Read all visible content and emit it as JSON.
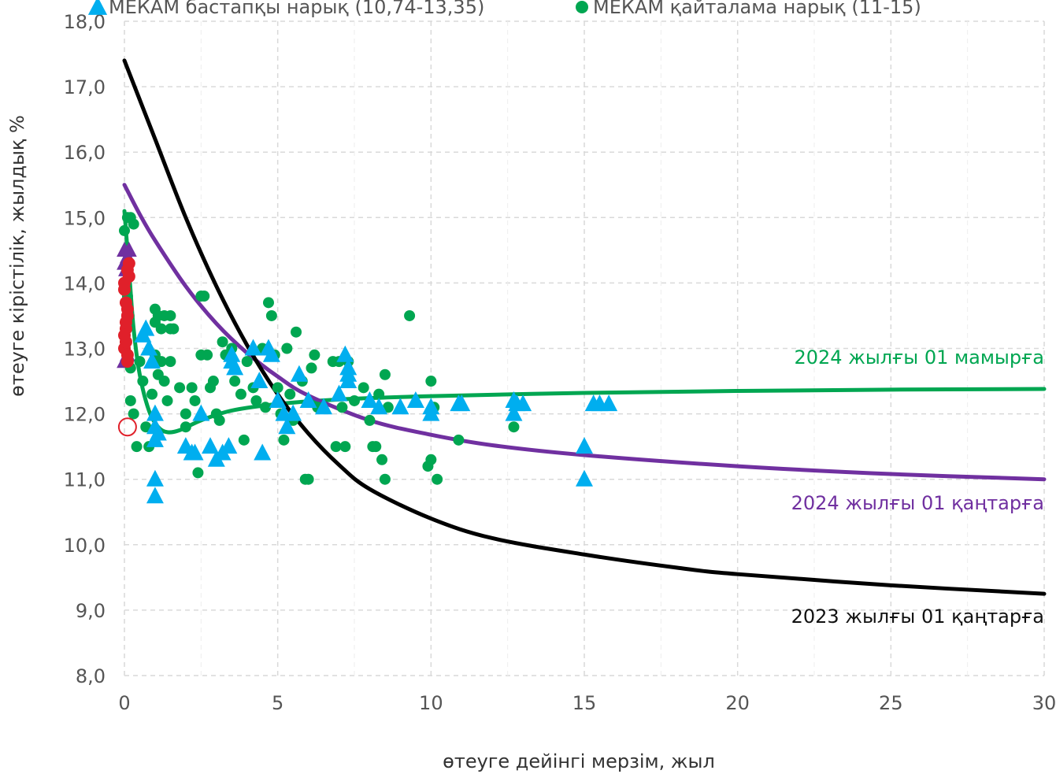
{
  "chart_data": {
    "type": "scatter",
    "xlabel": "өтеуге дейінгі мерзім, жыл",
    "ylabel": "өтеуге кірістілік, жылдық %",
    "xlim": [
      0,
      30
    ],
    "ylim": [
      8,
      18
    ],
    "x_ticks": [
      "0",
      "5",
      "10",
      "15",
      "20",
      "25",
      "30"
    ],
    "y_ticks": [
      "8,0",
      "9,0",
      "10,0",
      "11,0",
      "12,0",
      "13,0",
      "14,0",
      "15,0",
      "16,0",
      "17,0",
      "18,0"
    ],
    "grid": true,
    "legend_position": "top",
    "legend": [
      {
        "label": "МЕКАМ бастапқы нарық (10,74-13,35)",
        "marker": "triangle",
        "color": "#00AEEF"
      },
      {
        "label": "МЕКАМ қайталама нарық (11-15)",
        "marker": "circle",
        "color": "#00A651"
      }
    ],
    "curves": [
      {
        "name": "2024 жылғы 01 мамырға",
        "color": "#00A651",
        "points": [
          [
            0.0,
            15.1
          ],
          [
            0.15,
            14.2
          ],
          [
            0.3,
            13.3
          ],
          [
            0.5,
            12.6
          ],
          [
            0.8,
            12.05
          ],
          [
            1.1,
            11.8
          ],
          [
            1.4,
            11.72
          ],
          [
            1.8,
            11.75
          ],
          [
            2.5,
            11.9
          ],
          [
            3.5,
            12.05
          ],
          [
            5,
            12.15
          ],
          [
            7,
            12.22
          ],
          [
            10,
            12.27
          ],
          [
            15,
            12.32
          ],
          [
            20,
            12.35
          ],
          [
            25,
            12.37
          ],
          [
            30,
            12.38
          ]
        ]
      },
      {
        "name": "2024 жылғы 01 қаңтарға",
        "color": "#7030A0",
        "points": [
          [
            0,
            15.5
          ],
          [
            0.5,
            15.05
          ],
          [
            1,
            14.65
          ],
          [
            2,
            13.95
          ],
          [
            3,
            13.38
          ],
          [
            4,
            12.93
          ],
          [
            5,
            12.57
          ],
          [
            6,
            12.28
          ],
          [
            8,
            11.9
          ],
          [
            10,
            11.68
          ],
          [
            12,
            11.52
          ],
          [
            15,
            11.37
          ],
          [
            20,
            11.2
          ],
          [
            25,
            11.08
          ],
          [
            30,
            11.0
          ]
        ]
      },
      {
        "name": "2023 жылғы 01 қаңтарға",
        "color": "#000000",
        "points": [
          [
            0,
            17.4
          ],
          [
            0.5,
            16.8
          ],
          [
            1,
            16.2
          ],
          [
            2,
            15.0
          ],
          [
            3,
            13.95
          ],
          [
            4,
            13.05
          ],
          [
            5,
            12.3
          ],
          [
            6,
            11.7
          ],
          [
            7,
            11.22
          ],
          [
            8,
            10.85
          ],
          [
            10,
            10.4
          ],
          [
            12,
            10.1
          ],
          [
            15,
            9.85
          ],
          [
            18,
            9.65
          ],
          [
            20,
            9.55
          ],
          [
            25,
            9.38
          ],
          [
            30,
            9.25
          ]
        ]
      }
    ],
    "series": [
      {
        "name": "МЕКАМ бастапқы нарық (10,74-13,35)",
        "marker": "triangle",
        "color": "#00AEEF",
        "points": [
          [
            0.6,
            13.2
          ],
          [
            0.7,
            13.3
          ],
          [
            0.8,
            13.0
          ],
          [
            0.9,
            12.8
          ],
          [
            1.0,
            12.0
          ],
          [
            1.0,
            11.6
          ],
          [
            1.0,
            11.0
          ],
          [
            1.0,
            10.74
          ],
          [
            1.1,
            11.7
          ],
          [
            1.0,
            11.8
          ],
          [
            2.0,
            11.5
          ],
          [
            2.2,
            11.4
          ],
          [
            2.3,
            11.4
          ],
          [
            2.5,
            12.0
          ],
          [
            2.8,
            11.5
          ],
          [
            3.0,
            11.3
          ],
          [
            3.2,
            11.4
          ],
          [
            3.4,
            11.5
          ],
          [
            3.5,
            12.8
          ],
          [
            3.5,
            12.9
          ],
          [
            3.6,
            12.7
          ],
          [
            4.2,
            13.0
          ],
          [
            4.4,
            12.5
          ],
          [
            4.5,
            11.4
          ],
          [
            4.7,
            13.0
          ],
          [
            4.8,
            12.9
          ],
          [
            5.0,
            12.2
          ],
          [
            5.2,
            12.0
          ],
          [
            5.3,
            11.8
          ],
          [
            5.5,
            12.0
          ],
          [
            5.7,
            12.6
          ],
          [
            6.0,
            12.2
          ],
          [
            6.5,
            12.1
          ],
          [
            7.0,
            12.3
          ],
          [
            7.2,
            12.9
          ],
          [
            7.3,
            12.7
          ],
          [
            7.3,
            12.6
          ],
          [
            7.3,
            12.5
          ],
          [
            8.0,
            12.2
          ],
          [
            8.3,
            12.1
          ],
          [
            9.0,
            12.1
          ],
          [
            9.5,
            12.2
          ],
          [
            10.0,
            12.1
          ],
          [
            10.0,
            12.0
          ],
          [
            10.9,
            12.15
          ],
          [
            11.0,
            12.15
          ],
          [
            12.7,
            12.2
          ],
          [
            12.7,
            12.0
          ],
          [
            12.8,
            12.15
          ],
          [
            13.0,
            12.15
          ],
          [
            15.0,
            11.5
          ],
          [
            15.0,
            11.0
          ],
          [
            15.3,
            12.15
          ],
          [
            15.5,
            12.15
          ],
          [
            15.8,
            12.15
          ]
        ]
      },
      {
        "name": "МЕКАМ қайталама нарық (11-15)",
        "marker": "circle",
        "color": "#00A651",
        "points": [
          [
            0.0,
            14.8
          ],
          [
            0.1,
            15.0
          ],
          [
            0.2,
            15.0
          ],
          [
            0.3,
            14.9
          ],
          [
            0.1,
            13.8
          ],
          [
            0.15,
            13.5
          ],
          [
            0.2,
            12.7
          ],
          [
            0.3,
            12.0
          ],
          [
            0.2,
            12.2
          ],
          [
            0.4,
            11.5
          ],
          [
            0.5,
            12.8
          ],
          [
            0.6,
            12.5
          ],
          [
            0.7,
            11.8
          ],
          [
            0.8,
            11.5
          ],
          [
            0.9,
            12.3
          ],
          [
            1.0,
            13.4
          ],
          [
            1.0,
            13.6
          ],
          [
            1.1,
            13.5
          ],
          [
            1.2,
            13.3
          ],
          [
            1.3,
            13.5
          ],
          [
            1.5,
            13.3
          ],
          [
            1.5,
            13.5
          ],
          [
            1.6,
            13.3
          ],
          [
            1.2,
            12.8
          ],
          [
            1.3,
            12.5
          ],
          [
            1.4,
            12.2
          ],
          [
            1.0,
            12.9
          ],
          [
            1.1,
            12.6
          ],
          [
            1.5,
            12.8
          ],
          [
            1.8,
            12.4
          ],
          [
            2.0,
            12.0
          ],
          [
            2.0,
            11.8
          ],
          [
            2.2,
            12.4
          ],
          [
            2.3,
            12.2
          ],
          [
            2.4,
            11.1
          ],
          [
            2.5,
            13.8
          ],
          [
            2.6,
            13.8
          ],
          [
            2.5,
            12.9
          ],
          [
            2.7,
            12.9
          ],
          [
            2.8,
            12.4
          ],
          [
            2.9,
            12.5
          ],
          [
            3.0,
            12.0
          ],
          [
            3.1,
            11.9
          ],
          [
            3.2,
            13.1
          ],
          [
            3.3,
            12.9
          ],
          [
            3.5,
            13.0
          ],
          [
            3.6,
            12.5
          ],
          [
            3.8,
            12.3
          ],
          [
            3.9,
            11.6
          ],
          [
            4.0,
            12.8
          ],
          [
            4.2,
            12.4
          ],
          [
            4.3,
            12.2
          ],
          [
            4.5,
            13.0
          ],
          [
            4.6,
            12.1
          ],
          [
            4.7,
            13.7
          ],
          [
            4.8,
            13.5
          ],
          [
            4.9,
            12.9
          ],
          [
            5.0,
            12.4
          ],
          [
            5.1,
            12.0
          ],
          [
            5.2,
            11.6
          ],
          [
            5.3,
            13.0
          ],
          [
            5.4,
            12.3
          ],
          [
            5.5,
            11.9
          ],
          [
            5.6,
            13.25
          ],
          [
            5.8,
            12.5
          ],
          [
            5.9,
            11.0
          ],
          [
            6.0,
            11.0
          ],
          [
            6.1,
            12.7
          ],
          [
            6.2,
            12.9
          ],
          [
            6.3,
            12.1
          ],
          [
            6.8,
            12.8
          ],
          [
            6.9,
            11.5
          ],
          [
            7.0,
            12.8
          ],
          [
            7.1,
            12.1
          ],
          [
            7.2,
            11.5
          ],
          [
            7.3,
            12.8
          ],
          [
            7.5,
            12.2
          ],
          [
            7.8,
            12.4
          ],
          [
            8.0,
            11.9
          ],
          [
            8.1,
            11.5
          ],
          [
            8.2,
            11.5
          ],
          [
            8.3,
            12.3
          ],
          [
            8.4,
            11.3
          ],
          [
            8.5,
            11.0
          ],
          [
            8.5,
            12.6
          ],
          [
            8.6,
            12.1
          ],
          [
            9.3,
            13.5
          ],
          [
            10.0,
            12.5
          ],
          [
            9.9,
            11.2
          ],
          [
            10.0,
            11.3
          ],
          [
            10.1,
            12.1
          ],
          [
            10.2,
            11.0
          ],
          [
            10.9,
            11.6
          ],
          [
            12.7,
            11.8
          ]
        ]
      }
    ],
    "highlight_series": {
      "color": "#E0202A",
      "points": [
        [
          0.0,
          13.0
        ],
        [
          0.05,
          13.3
        ],
        [
          0.1,
          13.6
        ],
        [
          0.0,
          13.9
        ],
        [
          0.1,
          14.2
        ],
        [
          0.05,
          13.1
        ],
        [
          0.1,
          13.5
        ],
        [
          0.0,
          14.0
        ],
        [
          0.1,
          12.9
        ],
        [
          0.05,
          13.7
        ],
        [
          0.15,
          14.1
        ],
        [
          0.05,
          13.4
        ],
        [
          0.1,
          12.8
        ],
        [
          0.0,
          13.2
        ],
        [
          0.15,
          14.3
        ]
      ]
    },
    "outlier": {
      "x": 0.1,
      "y": 11.8,
      "color": "#E0202A",
      "marker": "open-circle"
    },
    "purple_cluster": {
      "color": "#7030A0",
      "points": [
        [
          0.0,
          14.5
        ],
        [
          0.1,
          14.4
        ],
        [
          0.0,
          14.3
        ],
        [
          0.15,
          14.5
        ],
        [
          0.05,
          14.2
        ],
        [
          0.0,
          12.8
        ],
        [
          0.1,
          12.9
        ]
      ]
    }
  }
}
